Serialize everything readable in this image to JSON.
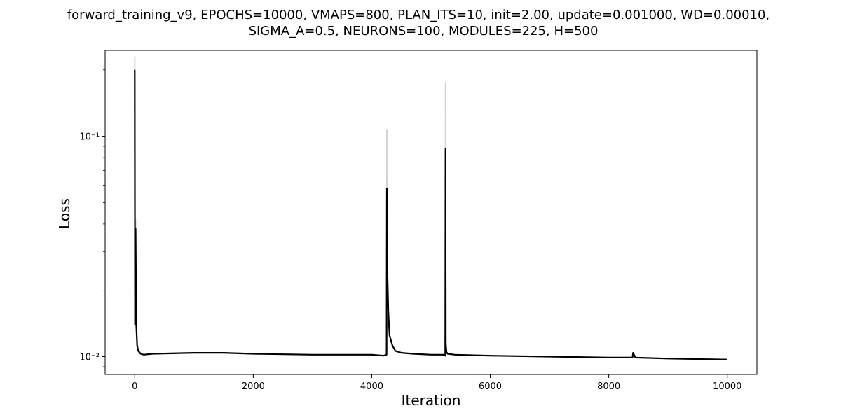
{
  "chart_data": {
    "type": "line",
    "title_line1": "forward_training_v9, EPOCHS=10000, VMAPS=800, PLAN_ITS=10, init=2.00, update=0.001000, WD=0.00010,",
    "title_line2": "SIGMA_A=0.5, NEURONS=100, MODULES=225, H=500",
    "xlabel": "Iteration",
    "ylabel": "Loss",
    "xscale": "linear",
    "yscale": "log",
    "xlim": [
      -500,
      10500
    ],
    "ylim": [
      0.0083,
      0.245
    ],
    "xticks": [
      0,
      2000,
      4000,
      6000,
      8000,
      10000
    ],
    "xtick_labels": [
      "0",
      "2000",
      "4000",
      "6000",
      "8000",
      "10000"
    ],
    "yticks": [
      0.01,
      0.1
    ],
    "ytick_labels": [
      "10⁻²",
      "10⁻¹"
    ],
    "grid": false,
    "legend": "none",
    "colors": {
      "raw": "#d3d3d3",
      "smoothed": "#000000"
    },
    "series": [
      {
        "role": "raw",
        "x": [
          0,
          5,
          15,
          25,
          40,
          60,
          100,
          150,
          300,
          1000,
          1500,
          2000,
          3000,
          4000,
          4200,
          4250,
          4255,
          4260,
          4280,
          4300,
          4350,
          4400,
          4500,
          4700,
          5000,
          5200,
          5240,
          5245,
          5250,
          5260,
          5280,
          5400,
          6000,
          7000,
          8000,
          8400,
          8410,
          8450,
          9000,
          10000
        ],
        "y": [
          0.23,
          0.014,
          0.042,
          0.015,
          0.0115,
          0.0108,
          0.0104,
          0.0102,
          0.0103,
          0.0104,
          0.0104,
          0.0103,
          0.0102,
          0.0102,
          0.0101,
          0.0102,
          0.107,
          0.028,
          0.016,
          0.0125,
          0.0112,
          0.0106,
          0.0104,
          0.0103,
          0.0102,
          0.0102,
          0.0101,
          0.175,
          0.012,
          0.0106,
          0.0103,
          0.0102,
          0.0101,
          0.01,
          0.0099,
          0.0099,
          0.0104,
          0.0099,
          0.0098,
          0.0097
        ]
      },
      {
        "role": "smoothed",
        "x": [
          0,
          5,
          15,
          25,
          40,
          60,
          100,
          150,
          300,
          1000,
          1500,
          2000,
          3000,
          4000,
          4200,
          4250,
          4255,
          4260,
          4280,
          4300,
          4350,
          4400,
          4500,
          4700,
          5000,
          5200,
          5240,
          5245,
          5250,
          5260,
          5280,
          5400,
          6000,
          7000,
          8000,
          8400,
          8410,
          8450,
          9000,
          10000
        ],
        "y": [
          0.2,
          0.014,
          0.038,
          0.014,
          0.0112,
          0.0106,
          0.0103,
          0.0102,
          0.0103,
          0.0104,
          0.0104,
          0.0103,
          0.0102,
          0.0102,
          0.0101,
          0.0102,
          0.058,
          0.027,
          0.016,
          0.0125,
          0.0112,
          0.0106,
          0.0104,
          0.0103,
          0.0102,
          0.0102,
          0.0101,
          0.088,
          0.0115,
          0.0105,
          0.0103,
          0.0102,
          0.0101,
          0.01,
          0.0099,
          0.0099,
          0.0104,
          0.0099,
          0.0098,
          0.0097
        ]
      }
    ]
  }
}
